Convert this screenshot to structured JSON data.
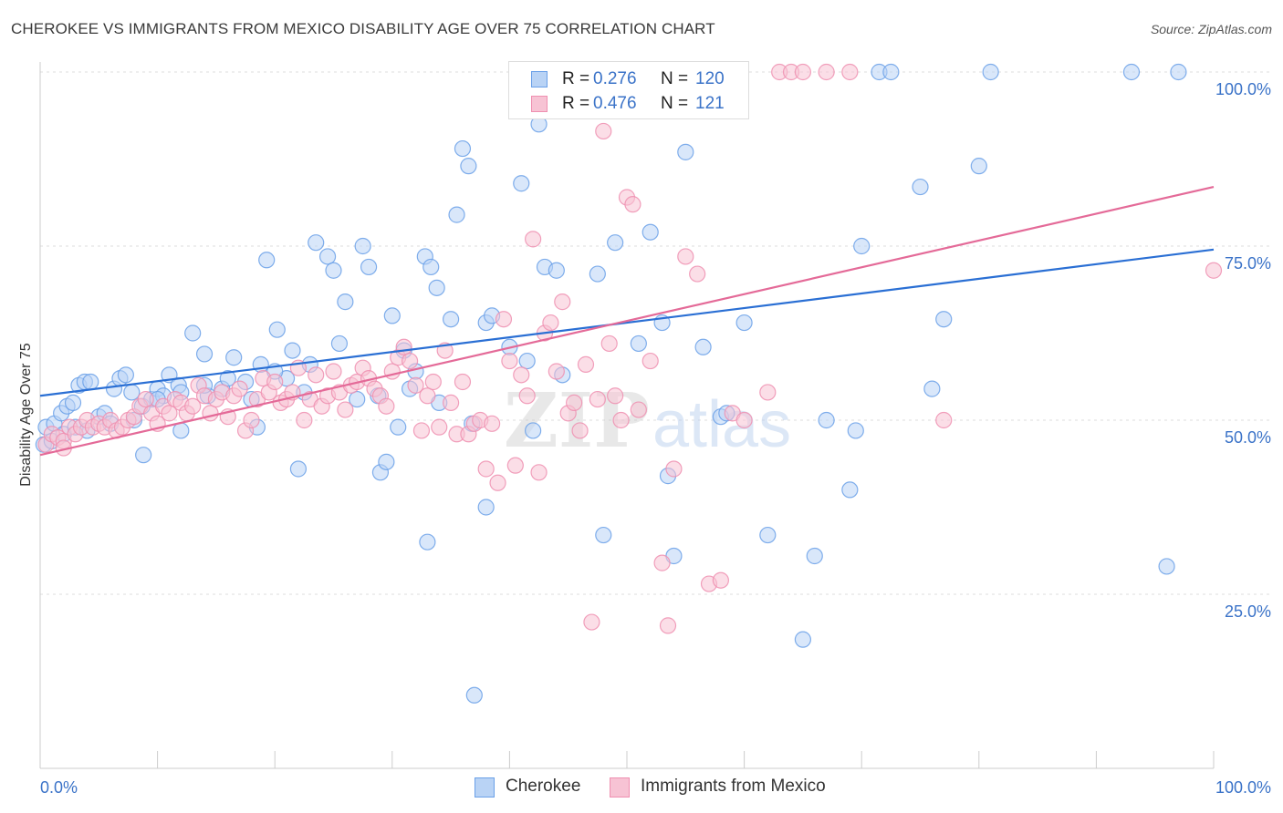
{
  "title": "CHEROKEE VS IMMIGRANTS FROM MEXICO DISABILITY AGE OVER 75 CORRELATION CHART",
  "source": "Source: ZipAtlas.com",
  "watermark": {
    "zip": "ZIP",
    "atlas": "atlas"
  },
  "colors": {
    "blue": "#6aa0e8",
    "blue_fill": "#b9d3f5",
    "blue_line": "#2a6fd4",
    "pink": "#ef8fb0",
    "pink_fill": "#f7c3d4",
    "pink_line": "#e46a98",
    "axis_text": "#3b73c8",
    "grid": "#dddddd"
  },
  "legend": {
    "rows": [
      {
        "r_label": "R =",
        "r_value": "0.276",
        "n_label": "N =",
        "n_value": "120"
      },
      {
        "r_label": "R =",
        "r_value": "0.476",
        "n_label": "N =",
        "n_value": "121"
      }
    ]
  },
  "chart_data": {
    "type": "scatter",
    "title": "CHEROKEE VS IMMIGRANTS FROM MEXICO DISABILITY AGE OVER 75 CORRELATION CHART",
    "xlabel": "",
    "ylabel": "Disability Age Over 75",
    "xlim": [
      0,
      100
    ],
    "ylim": [
      0,
      100
    ],
    "x_tick_labels": [
      "0.0%",
      "100.0%"
    ],
    "y_ticks": [
      25,
      50,
      75,
      100
    ],
    "y_tick_labels": [
      "25.0%",
      "50.0%",
      "75.0%",
      "100.0%"
    ],
    "grid": true,
    "legend_position": "top-center",
    "series": [
      {
        "name": "Cherokee",
        "color": "#6aa0e8",
        "r": 0.276,
        "n": 120,
        "trend": {
          "x": [
            0,
            100
          ],
          "y": [
            53.5,
            74.5
          ]
        },
        "points": [
          [
            0.5,
            49
          ],
          [
            1.2,
            49.5
          ],
          [
            1.8,
            51
          ],
          [
            2.3,
            52
          ],
          [
            2.8,
            52.5
          ],
          [
            3.3,
            55
          ],
          [
            3.8,
            55.5
          ],
          [
            4.3,
            55.5
          ],
          [
            5,
            50.5
          ],
          [
            5.5,
            51
          ],
          [
            6.3,
            54.5
          ],
          [
            6.8,
            56
          ],
          [
            7.3,
            56.5
          ],
          [
            7.8,
            54
          ],
          [
            8.7,
            52
          ],
          [
            8.8,
            45
          ],
          [
            9.5,
            53
          ],
          [
            10,
            54.5
          ],
          [
            10.5,
            53.5
          ],
          [
            11,
            56.5
          ],
          [
            11.8,
            55
          ],
          [
            12,
            48.5
          ],
          [
            13,
            62.5
          ],
          [
            14,
            59.5
          ],
          [
            14.3,
            53.5
          ],
          [
            15.5,
            54.5
          ],
          [
            16.5,
            59
          ],
          [
            17.5,
            55.5
          ],
          [
            18,
            53
          ],
          [
            18.5,
            49
          ],
          [
            18.8,
            58
          ],
          [
            19.3,
            73
          ],
          [
            20.2,
            63
          ],
          [
            21,
            56
          ],
          [
            21.5,
            60
          ],
          [
            22,
            43
          ],
          [
            22.5,
            54
          ],
          [
            23,
            58
          ],
          [
            23.5,
            75.5
          ],
          [
            24.5,
            73.5
          ],
          [
            25,
            71.5
          ],
          [
            25.5,
            61
          ],
          [
            26,
            67
          ],
          [
            27,
            53
          ],
          [
            27.5,
            75
          ],
          [
            28,
            72
          ],
          [
            28.8,
            53.5
          ],
          [
            29,
            42.5
          ],
          [
            29.5,
            44
          ],
          [
            30,
            65
          ],
          [
            30.5,
            49
          ],
          [
            31,
            60
          ],
          [
            31.5,
            54.5
          ],
          [
            32,
            57
          ],
          [
            32.8,
            73.5
          ],
          [
            33,
            32.5
          ],
          [
            33.3,
            72
          ],
          [
            33.8,
            69
          ],
          [
            34,
            52.5
          ],
          [
            35,
            64.5
          ],
          [
            35.5,
            79.5
          ],
          [
            36,
            89
          ],
          [
            36.5,
            86.5
          ],
          [
            36.8,
            49.5
          ],
          [
            37,
            10.5
          ],
          [
            38,
            37.5
          ],
          [
            38,
            64
          ],
          [
            38.5,
            65
          ],
          [
            40,
            60.5
          ],
          [
            41,
            84
          ],
          [
            41.5,
            58.5
          ],
          [
            42,
            48.5
          ],
          [
            42.5,
            92.5
          ],
          [
            43,
            72
          ],
          [
            43.5,
            100
          ],
          [
            44,
            71.5
          ],
          [
            44.5,
            56.5
          ],
          [
            47.5,
            71
          ],
          [
            48,
            33.5
          ],
          [
            49,
            75.5
          ],
          [
            50.5,
            100
          ],
          [
            51,
            61
          ],
          [
            52,
            77
          ],
          [
            53,
            64
          ],
          [
            53.5,
            42
          ],
          [
            54,
            30.5
          ],
          [
            55,
            88.5
          ],
          [
            56.5,
            60.5
          ],
          [
            58,
            50.5
          ],
          [
            58.5,
            51
          ],
          [
            60,
            64
          ],
          [
            62,
            33.5
          ],
          [
            65,
            18.5
          ],
          [
            66,
            30.5
          ],
          [
            67,
            50
          ],
          [
            69,
            40
          ],
          [
            69.5,
            48.5
          ],
          [
            70,
            75
          ],
          [
            71.5,
            100
          ],
          [
            72.5,
            100
          ],
          [
            75,
            83.5
          ],
          [
            76,
            54.5
          ],
          [
            77,
            64.5
          ],
          [
            80,
            86.5
          ],
          [
            81,
            100
          ],
          [
            93,
            100
          ],
          [
            96,
            29
          ],
          [
            97,
            100
          ],
          [
            0.3,
            46.5
          ],
          [
            1,
            47
          ],
          [
            2,
            48
          ],
          [
            3,
            49
          ],
          [
            4,
            48.5
          ],
          [
            6,
            49.5
          ],
          [
            8,
            50
          ],
          [
            10,
            53
          ],
          [
            12,
            54
          ],
          [
            14,
            55
          ],
          [
            16,
            56
          ],
          [
            20,
            57
          ]
        ]
      },
      {
        "name": "Immigrants from Mexico",
        "color": "#ef8fb0",
        "r": 0.476,
        "n": 121,
        "trend": {
          "x": [
            0,
            100
          ],
          "y": [
            45,
            83.5
          ]
        },
        "points": [
          [
            0.5,
            46.5
          ],
          [
            1,
            48
          ],
          [
            1.5,
            47.5
          ],
          [
            2,
            47
          ],
          [
            2.5,
            49
          ],
          [
            3,
            48
          ],
          [
            3.5,
            49
          ],
          [
            4,
            50
          ],
          [
            4.5,
            49
          ],
          [
            5,
            49.5
          ],
          [
            5.5,
            49
          ],
          [
            6,
            50
          ],
          [
            6.5,
            48.5
          ],
          [
            7,
            49
          ],
          [
            7.5,
            50
          ],
          [
            8,
            50.5
          ],
          [
            8.5,
            52
          ],
          [
            9,
            53
          ],
          [
            9.5,
            51
          ],
          [
            10,
            49.5
          ],
          [
            10.5,
            52
          ],
          [
            11,
            51
          ],
          [
            11.5,
            53
          ],
          [
            12,
            52.5
          ],
          [
            12.5,
            51
          ],
          [
            13,
            52
          ],
          [
            13.5,
            55
          ],
          [
            14,
            53.5
          ],
          [
            14.5,
            51
          ],
          [
            15,
            53
          ],
          [
            15.5,
            54
          ],
          [
            16,
            50.5
          ],
          [
            16.5,
            53.5
          ],
          [
            17,
            54.5
          ],
          [
            17.5,
            48.5
          ],
          [
            18,
            50
          ],
          [
            18.5,
            53
          ],
          [
            19,
            56
          ],
          [
            19.5,
            54
          ],
          [
            20,
            55.5
          ],
          [
            20.5,
            52.5
          ],
          [
            21,
            53
          ],
          [
            21.5,
            54
          ],
          [
            22,
            57.5
          ],
          [
            22.5,
            50
          ],
          [
            23,
            53
          ],
          [
            23.5,
            56.5
          ],
          [
            24,
            52
          ],
          [
            24.5,
            53.5
          ],
          [
            25,
            57
          ],
          [
            25.5,
            54
          ],
          [
            26,
            51.5
          ],
          [
            26.5,
            55
          ],
          [
            27,
            55.5
          ],
          [
            27.5,
            57.5
          ],
          [
            28,
            56
          ],
          [
            28.5,
            54.5
          ],
          [
            29,
            53.5
          ],
          [
            29.5,
            52
          ],
          [
            30,
            57
          ],
          [
            30.5,
            59
          ],
          [
            31,
            60.5
          ],
          [
            31.5,
            58.5
          ],
          [
            32,
            55
          ],
          [
            32.5,
            48.5
          ],
          [
            33,
            53.5
          ],
          [
            33.5,
            55.5
          ],
          [
            34,
            49
          ],
          [
            34.5,
            60
          ],
          [
            35,
            52.5
          ],
          [
            35.5,
            48
          ],
          [
            36,
            55.5
          ],
          [
            36.5,
            48
          ],
          [
            37,
            49.5
          ],
          [
            37.5,
            50
          ],
          [
            38,
            43
          ],
          [
            38.5,
            49.5
          ],
          [
            39,
            41
          ],
          [
            39.5,
            64.5
          ],
          [
            40,
            58.5
          ],
          [
            40.5,
            43.5
          ],
          [
            41,
            56.5
          ],
          [
            41.5,
            53.5
          ],
          [
            42,
            76
          ],
          [
            42.5,
            42.5
          ],
          [
            43,
            62.5
          ],
          [
            43.5,
            64
          ],
          [
            44,
            57
          ],
          [
            44.5,
            67
          ],
          [
            45,
            51
          ],
          [
            45.5,
            52.5
          ],
          [
            46,
            48.5
          ],
          [
            46.5,
            58
          ],
          [
            47,
            21
          ],
          [
            47.5,
            53
          ],
          [
            48,
            91.5
          ],
          [
            48.5,
            61
          ],
          [
            49,
            53.5
          ],
          [
            49.5,
            50
          ],
          [
            50,
            82
          ],
          [
            50.5,
            81
          ],
          [
            51,
            51.5
          ],
          [
            52,
            58.5
          ],
          [
            53,
            29.5
          ],
          [
            53.5,
            20.5
          ],
          [
            54,
            43
          ],
          [
            55,
            73.5
          ],
          [
            56,
            71
          ],
          [
            57,
            26.5
          ],
          [
            58,
            27
          ],
          [
            59,
            51
          ],
          [
            60,
            50
          ],
          [
            62,
            54
          ],
          [
            63,
            100
          ],
          [
            64,
            100
          ],
          [
            65,
            100
          ],
          [
            67,
            100
          ],
          [
            69,
            100
          ],
          [
            77,
            50
          ],
          [
            100,
            71.5
          ],
          [
            2,
            46
          ]
        ]
      }
    ]
  }
}
